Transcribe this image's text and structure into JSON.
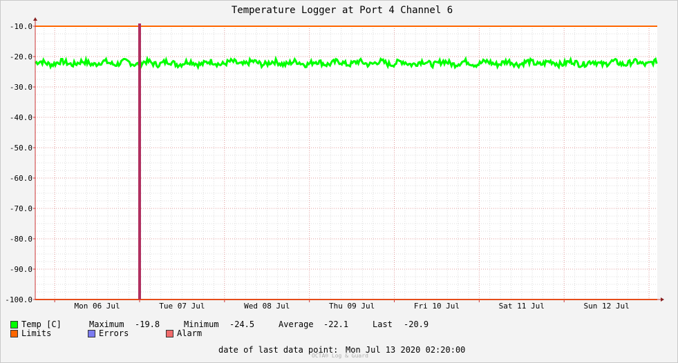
{
  "chart_data": {
    "type": "line",
    "title": "Temperature Logger at Port 4 Channel 6",
    "ylim": [
      -100.0,
      -10.0
    ],
    "y_ticks": [
      "-10.0",
      "-20.0",
      "-30.0",
      "-40.0",
      "-50.0",
      "-60.0",
      "-70.0",
      "-80.0",
      "-90.0",
      "-100.0"
    ],
    "x_ticks": [
      "Mon 06 Jul",
      "Tue 07 Jul",
      "Wed 08 Jul",
      "Thu 09 Jul",
      "Fri 10 Jul",
      "Sat 11 Jul",
      "Sun 12 Jul"
    ],
    "x_range": [
      "2020-07-05T18:30",
      "2020-07-13T02:20"
    ],
    "grid": true,
    "series": [
      {
        "name": "Temp [C]",
        "color": "#00ff00",
        "band_min": -23.7,
        "band_max": -20.8,
        "mean": -22.1
      },
      {
        "name": "Limits",
        "color": "#ff6600",
        "upper": -10.0,
        "lower": -100.0
      }
    ],
    "events": [
      {
        "type": "Alarm",
        "date": "2020-07-07T00:00",
        "color": "#b03060"
      }
    ]
  },
  "legend": {
    "temp_label": "Temp [C]",
    "max_label": "Maximum",
    "max_value": "-19.8",
    "min_label": "Minimum",
    "min_value": "-24.5",
    "avg_label": "Average",
    "avg_value": "-22.1",
    "last_label": "Last",
    "last_value": "-20.9",
    "limits_label": "Limits",
    "errors_label": "Errors",
    "alarm_label": "Alarm",
    "temp_color": "#00ff00",
    "limits_color": "#ff6600",
    "errors_color": "#7b7bf0",
    "alarm_color": "#f06a6a"
  },
  "footer": {
    "last_point_label": "date of last data point:",
    "last_point_value": "Mon Jul 13 2020 02:20:00",
    "watermark": "OCTA® Log & Guard"
  }
}
